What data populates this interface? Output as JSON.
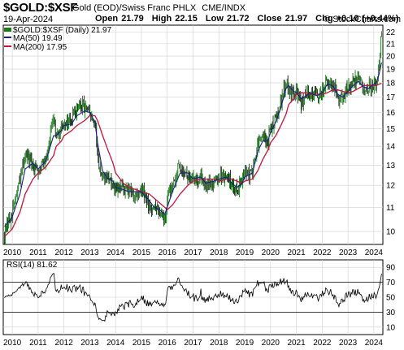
{
  "header": {
    "symbol": "$GOLD:$XSF",
    "description": "Gold (EOD)/Swiss Franc PHLX",
    "exchange": "CME/INDX",
    "date": "19-Apr-2024",
    "open_label": "Open",
    "open": "21.79",
    "high_label": "High",
    "high": "22.15",
    "low_label": "Low",
    "low": "21.72",
    "close_label": "Close",
    "close": "21.97",
    "chg_label": "Chg",
    "chg": "+0.10 (+0.44%)",
    "copyright": "© StockCharts.com"
  },
  "legend": {
    "price": "$GOLD:$XSF (Daily) 21.97",
    "ma50": "MA(50) 19.49",
    "ma200": "MA(200) 17.95",
    "rsi": "RSI(14) 81.62"
  },
  "colors": {
    "candle": "#1a7a1a",
    "candle_dark": "#0a2a0a",
    "ma50": "#1c1c8c",
    "ma200": "#c4143c",
    "rsi": "#000000",
    "grid": "#d0d0d0"
  },
  "chart_data": [
    {
      "type": "line",
      "panel": "price",
      "yscale": "log",
      "ylim": [
        9.5,
        22.6
      ],
      "yticks": [
        10,
        11,
        12,
        13,
        14,
        15,
        16,
        17,
        18,
        19,
        20,
        21,
        22
      ],
      "x": [
        2009.7,
        2010.0,
        2010.3,
        2010.5,
        2010.8,
        2011.0,
        2011.3,
        2011.6,
        2011.7,
        2011.9,
        2012.0,
        2012.3,
        2012.5,
        2012.8,
        2013.0,
        2013.2,
        2013.3,
        2013.5,
        2013.7,
        2013.9,
        2014.0,
        2014.3,
        2014.5,
        2014.8,
        2015.0,
        2015.3,
        2015.5,
        2015.7,
        2015.9,
        2016.0,
        2016.2,
        2016.5,
        2016.8,
        2017.0,
        2017.3,
        2017.5,
        2017.8,
        2018.0,
        2018.3,
        2018.5,
        2018.7,
        2018.9,
        2019.0,
        2019.3,
        2019.5,
        2019.7,
        2019.9,
        2020.0,
        2020.2,
        2020.4,
        2020.6,
        2020.7,
        2020.9,
        2021.0,
        2021.2,
        2021.4,
        2021.5,
        2021.8,
        2022.0,
        2022.2,
        2022.4,
        2022.6,
        2022.8,
        2023.0,
        2023.2,
        2023.4,
        2023.6,
        2023.8,
        2024.0,
        2024.1,
        2024.2,
        2024.3
      ],
      "series": [
        {
          "values": [
            9.9,
            10.8,
            12.2,
            13.6,
            12.9,
            12.8,
            13.4,
            15.5,
            14.4,
            15.1,
            15.4,
            15.5,
            16.2,
            16.4,
            15.8,
            15.2,
            13.6,
            12.0,
            12.6,
            11.9,
            11.7,
            11.9,
            11.7,
            11.6,
            11.8,
            11.1,
            10.9,
            10.9,
            10.5,
            11.3,
            12.1,
            13.0,
            12.4,
            12.2,
            12.5,
            12.0,
            12.2,
            12.4,
            12.5,
            12.0,
            11.8,
            12.4,
            12.5,
            12.6,
            14.1,
            14.5,
            14.2,
            15.0,
            15.7,
            16.7,
            18.2,
            17.8,
            17.2,
            17.4,
            16.6,
            17.3,
            17.4,
            17.0,
            17.4,
            18.2,
            17.7,
            17.0,
            16.9,
            17.6,
            18.1,
            18.4,
            17.5,
            17.7,
            18.1,
            18.0,
            19.5,
            21.97
          ]
        },
        {
          "name": "MA(50)",
          "values": [
            10.2,
            10.6,
            11.6,
            12.8,
            13.1,
            12.8,
            13.2,
            14.6,
            14.6,
            14.9,
            15.2,
            15.3,
            15.8,
            16.1,
            16.0,
            15.4,
            14.2,
            12.7,
            12.3,
            12.2,
            11.9,
            11.8,
            11.7,
            11.7,
            11.7,
            11.3,
            11.0,
            10.9,
            10.7,
            11.0,
            11.7,
            12.6,
            12.6,
            12.3,
            12.4,
            12.1,
            12.2,
            12.3,
            12.4,
            12.1,
            11.9,
            12.1,
            12.4,
            12.6,
            13.7,
            14.3,
            14.3,
            14.8,
            15.4,
            16.3,
            17.6,
            17.8,
            17.4,
            17.3,
            16.9,
            17.1,
            17.3,
            17.1,
            17.3,
            17.9,
            17.8,
            17.2,
            17.0,
            17.4,
            17.8,
            18.1,
            17.7,
            17.6,
            17.9,
            18.0,
            18.6,
            19.49
          ]
        },
        {
          "name": "MA(200)",
          "values": [
            9.8,
            10.1,
            10.8,
            11.6,
            12.3,
            12.6,
            12.9,
            13.5,
            14.0,
            14.3,
            14.6,
            14.9,
            15.2,
            15.5,
            15.8,
            15.8,
            15.5,
            14.6,
            13.8,
            13.1,
            12.6,
            12.1,
            11.9,
            11.8,
            11.7,
            11.6,
            11.4,
            11.2,
            11.0,
            10.9,
            11.1,
            11.6,
            12.0,
            12.2,
            12.3,
            12.3,
            12.3,
            12.2,
            12.3,
            12.3,
            12.2,
            12.1,
            12.2,
            12.3,
            12.7,
            13.3,
            13.8,
            14.2,
            14.6,
            15.2,
            15.9,
            16.5,
            16.9,
            17.2,
            17.3,
            17.3,
            17.2,
            17.2,
            17.2,
            17.3,
            17.5,
            17.5,
            17.4,
            17.3,
            17.4,
            17.6,
            17.8,
            17.8,
            17.8,
            17.8,
            17.9,
            17.95
          ]
        }
      ],
      "xticks": [
        "2010",
        "2011",
        "2012",
        "2013",
        "2014",
        "2015",
        "2016",
        "2017",
        "2018",
        "2019",
        "2020",
        "2021",
        "2022",
        "2023",
        "2024"
      ]
    },
    {
      "type": "line",
      "panel": "rsi",
      "ylim": [
        0,
        100
      ],
      "yticks": [
        10,
        30,
        50,
        70,
        90
      ],
      "reference_lines": [
        30,
        70
      ],
      "xticks": [
        "2010",
        "2011",
        "2012",
        "2013",
        "2014",
        "2015",
        "2016",
        "2017",
        "2018",
        "2019",
        "2020",
        "2021",
        "2022",
        "2023",
        "2024"
      ],
      "last_value": 81.62
    }
  ]
}
